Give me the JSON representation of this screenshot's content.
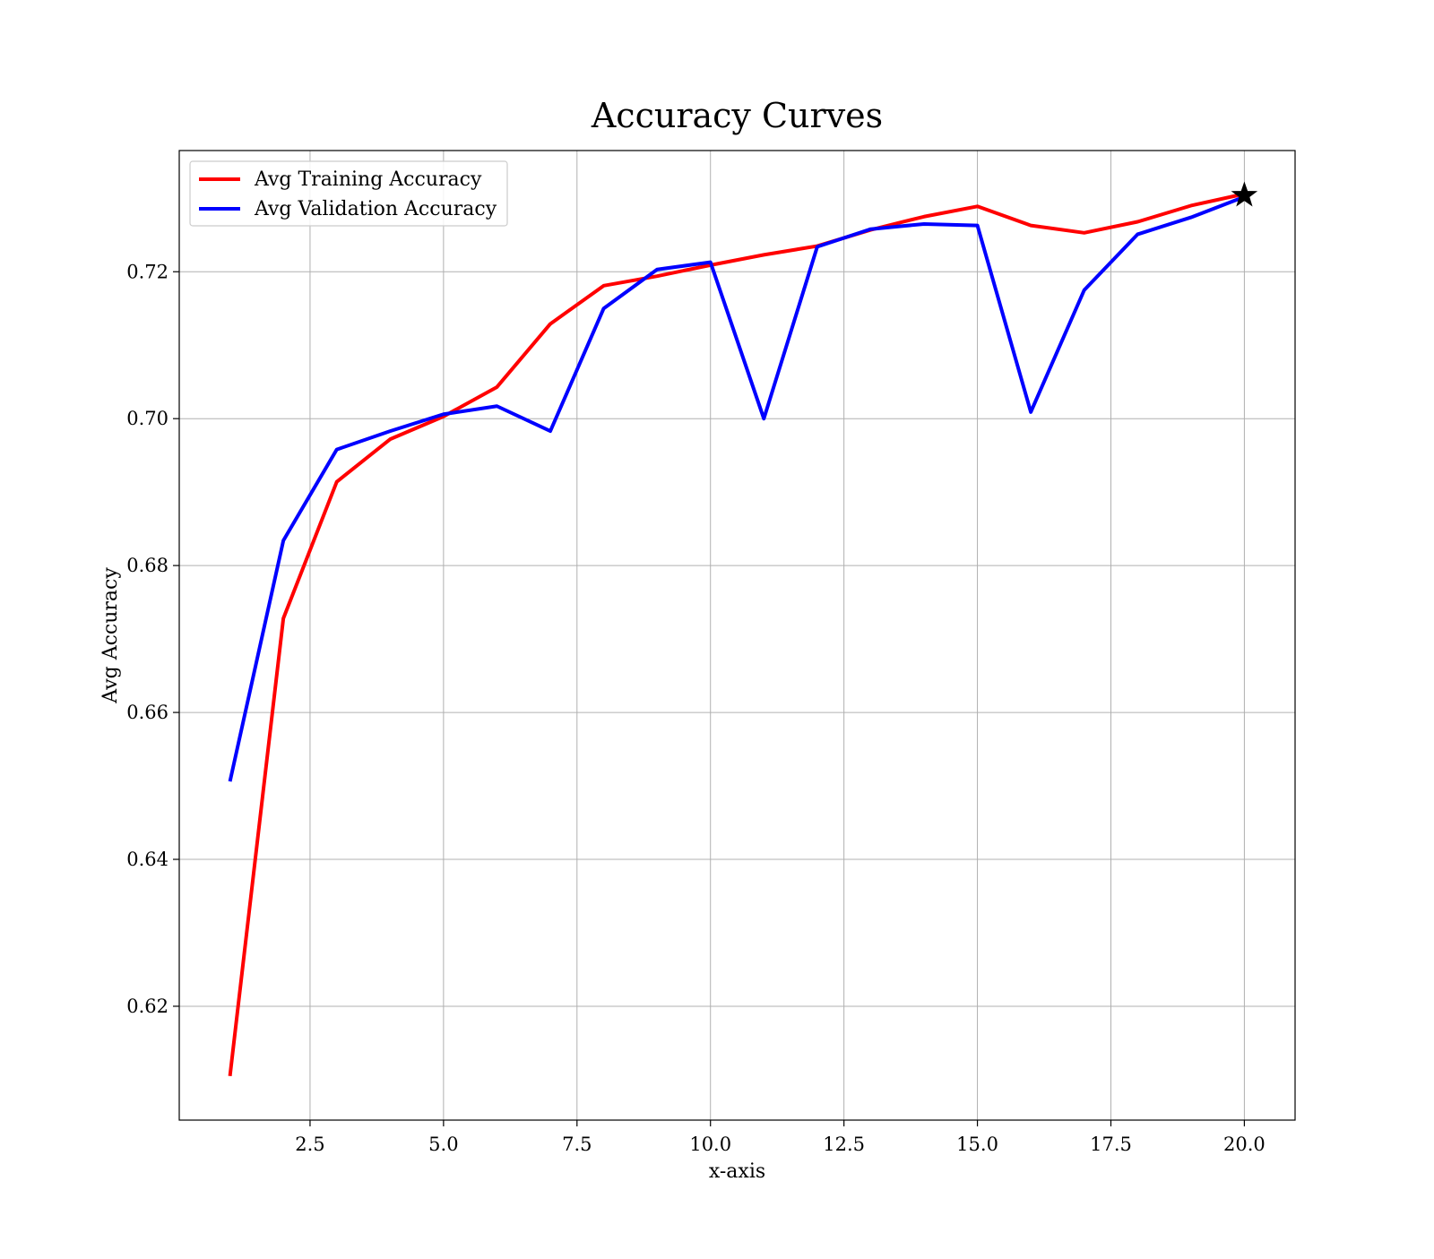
{
  "chart_data": {
    "type": "line",
    "title": "Accuracy Curves",
    "xlabel": "x-axis",
    "ylabel": "Avg Accuracy",
    "xlim": [
      0.05,
      20.95
    ],
    "ylim": [
      0.6045,
      0.7365
    ],
    "xticks": [
      2.5,
      5.0,
      7.5,
      10.0,
      12.5,
      15.0,
      17.5,
      20.0
    ],
    "xtick_labels": [
      "2.5",
      "5.0",
      "7.5",
      "10.0",
      "12.5",
      "15.0",
      "17.5",
      "20.0"
    ],
    "yticks": [
      0.62,
      0.64,
      0.66,
      0.68,
      0.7,
      0.72
    ],
    "ytick_labels": [
      "0.62",
      "0.64",
      "0.66",
      "0.68",
      "0.70",
      "0.72"
    ],
    "grid": true,
    "legend_position": "top-left",
    "x": [
      1,
      2,
      3,
      4,
      5,
      6,
      7,
      8,
      9,
      10,
      11,
      12,
      13,
      14,
      15,
      16,
      17,
      18,
      19,
      20
    ],
    "series": [
      {
        "name": "Avg Training Accuracy",
        "color": "#ff0000",
        "values": [
          0.6105,
          0.6728,
          0.6914,
          0.6972,
          0.7003,
          0.7043,
          0.7129,
          0.7181,
          0.7194,
          0.7209,
          0.7223,
          0.7235,
          0.7257,
          0.7275,
          0.7289,
          0.7263,
          0.7253,
          0.7268,
          0.729,
          0.7306
        ]
      },
      {
        "name": "Avg Validation Accuracy",
        "color": "#0000ff",
        "values": [
          0.6506,
          0.6834,
          0.6958,
          0.6983,
          0.7006,
          0.7017,
          0.6983,
          0.715,
          0.7203,
          0.7213,
          0.7,
          0.7234,
          0.7258,
          0.7265,
          0.7263,
          0.7009,
          0.7175,
          0.7251,
          0.7274,
          0.7302
        ]
      }
    ],
    "marker": {
      "x": 20,
      "y": 0.7304,
      "shape": "star",
      "color": "#000000"
    }
  }
}
